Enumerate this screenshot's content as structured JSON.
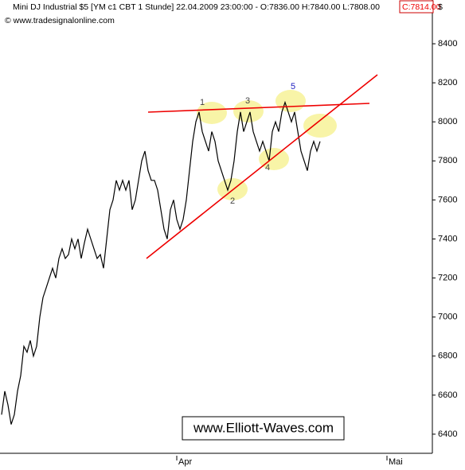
{
  "chart_data": {
    "type": "line",
    "title": "Mini DJ Industrial $5 [YM c1 CBT  1 Stunde] 22.04.2009 23:00:00 - O:7836.00 H:7840.00 L:7808.00",
    "title_close": "C:7814.00",
    "subtitle": "© www.tradesignalonline.com",
    "y_label": "$",
    "watermark": "www.Elliott-Waves.com",
    "wave_labels": [
      "1",
      "2",
      "3",
      "4",
      "5"
    ],
    "categories": [
      null,
      null,
      null,
      null,
      null,
      null,
      null,
      null,
      null,
      null,
      null,
      null,
      null,
      null,
      null,
      null,
      null,
      null,
      null,
      null,
      null,
      null,
      null,
      null,
      null,
      null,
      null,
      null,
      null,
      null,
      null,
      null,
      null,
      null,
      null,
      null,
      null,
      null,
      null,
      null,
      null,
      null,
      null,
      null,
      null,
      null,
      null,
      null,
      null,
      null,
      null,
      null,
      null,
      null,
      null,
      "Apr",
      null,
      null,
      null,
      null,
      null,
      null,
      null,
      null,
      null,
      null,
      null,
      null,
      null,
      null,
      null,
      null,
      null,
      null,
      null,
      null,
      null,
      null,
      null,
      null,
      null,
      null,
      null,
      null,
      null,
      null,
      null,
      null,
      null,
      null,
      null,
      null,
      null,
      null,
      null,
      null,
      null,
      null,
      null,
      null,
      null,
      null,
      null,
      null,
      null,
      null,
      null,
      null,
      null,
      null,
      null,
      null,
      null,
      null,
      null,
      null,
      null,
      null,
      null,
      null,
      null,
      "Mai",
      null,
      null,
      null,
      null,
      null,
      null,
      null,
      null,
      null,
      null,
      null,
      null,
      null,
      null
    ],
    "series": [
      {
        "color": "#000000",
        "values": [
          6500,
          6620,
          6550,
          6450,
          6500,
          6620,
          6700,
          6850,
          6820,
          6880,
          6800,
          6850,
          7000,
          7100,
          7150,
          7200,
          7250,
          7200,
          7300,
          7350,
          7300,
          7320,
          7400,
          7350,
          7400,
          7300,
          7380,
          7450,
          7400,
          7350,
          7300,
          7320,
          7250,
          7400,
          7550,
          7600,
          7700,
          7650,
          7700,
          7650,
          7700,
          7550,
          7600,
          7700,
          7800,
          7850,
          7750,
          7700,
          7700,
          7650,
          7550,
          7450,
          7400,
          7550,
          7600,
          7500,
          7450,
          7500,
          7600,
          7750,
          7900,
          8000,
          8050,
          7950,
          7900,
          7850,
          7950,
          7900,
          7800,
          7750,
          7700,
          7650,
          7700,
          7800,
          7950,
          8050,
          7950,
          8000,
          8050,
          7950,
          7900,
          7850,
          7900,
          7850,
          7800,
          7950,
          8000,
          7950,
          8050,
          8100,
          8050,
          8000,
          8050,
          7950,
          7850,
          7800,
          7750,
          7850,
          7900,
          7850,
          7900,
          null,
          null,
          null,
          null,
          null,
          null,
          null,
          null,
          null,
          null,
          null,
          null,
          null,
          null,
          null,
          null,
          null,
          null,
          null,
          null,
          null,
          null,
          null,
          null,
          null,
          null,
          null,
          null,
          null,
          null,
          null,
          null,
          null,
          null,
          null
        ]
      }
    ],
    "ylim": [
      6302,
      8559
    ],
    "yticks": [
      6400,
      6600,
      6800,
      7000,
      7200,
      7400,
      7600,
      7800,
      8000,
      8200,
      8400
    ],
    "grid": false
  }
}
